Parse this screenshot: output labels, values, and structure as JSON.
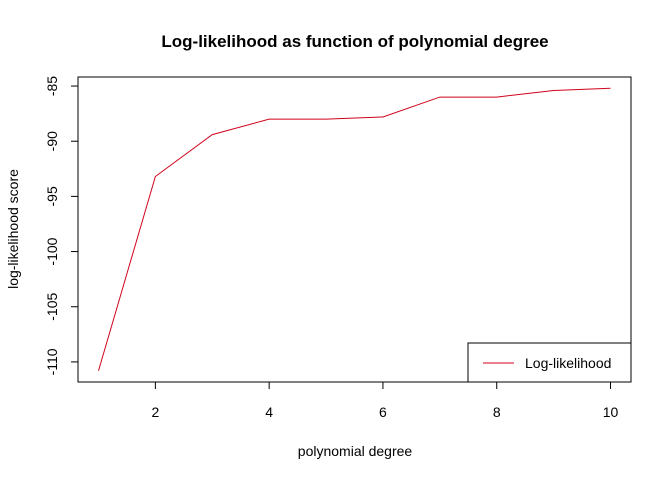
{
  "chart_data": {
    "type": "line",
    "title": "Log-likelihood as function of polynomial degree",
    "xlabel": "polynomial degree",
    "ylabel": "log-likelihood score",
    "x": [
      1,
      2,
      3,
      4,
      5,
      6,
      7,
      8,
      9,
      10
    ],
    "series": [
      {
        "name": "Log-likelihood",
        "color": "#d0021b",
        "values": [
          -110.8,
          -93.2,
          -89.4,
          -88.0,
          -88.0,
          -87.8,
          -86.0,
          -86.0,
          -85.4,
          -85.2
        ]
      }
    ],
    "xlim": [
      0.64,
      10.36
    ],
    "ylim": [
      -111.82,
      -84.18
    ],
    "xticks": [
      2,
      4,
      6,
      8,
      10
    ],
    "yticks": [
      -110,
      -105,
      -100,
      -95,
      -90,
      -85
    ],
    "xtick_labels": [
      "2",
      "4",
      "6",
      "8",
      "10"
    ],
    "ytick_labels": [
      "-110",
      "-105",
      "-100",
      "-95",
      "-90",
      "-85"
    ],
    "grid": false,
    "legend_position": "bottom-right"
  }
}
